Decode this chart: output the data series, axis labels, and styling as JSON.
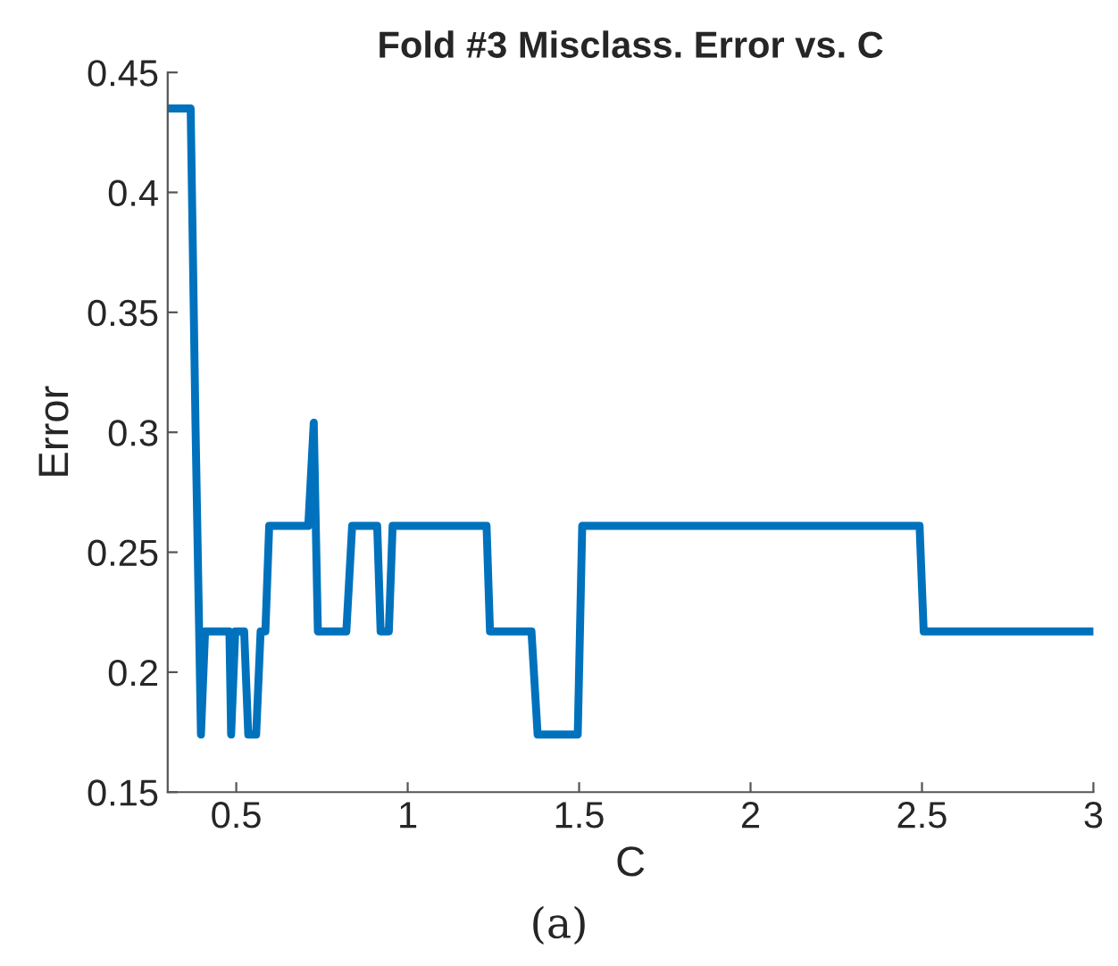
{
  "chart_data": {
    "type": "line",
    "title": "Fold #3 Misclass. Error vs. C",
    "xlabel": "C",
    "ylabel": "Error",
    "annotations": [
      "(a)"
    ],
    "x": [
      0.3,
      0.367,
      0.381,
      0.397,
      0.409,
      0.48,
      0.485,
      0.497,
      0.523,
      0.535,
      0.558,
      0.571,
      0.585,
      0.596,
      0.71,
      0.726,
      0.738,
      0.821,
      0.838,
      0.911,
      0.921,
      0.945,
      0.956,
      1.23,
      1.24,
      1.361,
      1.379,
      1.496,
      1.509,
      2.493,
      2.505,
      3
    ],
    "series": [
      {
        "color": "#0072bd",
        "values": [
          0.435,
          0.435,
          0.304,
          0.174,
          0.217,
          0.217,
          0.174,
          0.217,
          0.217,
          0.174,
          0.174,
          0.217,
          0.217,
          0.261,
          0.261,
          0.304,
          0.217,
          0.217,
          0.261,
          0.261,
          0.217,
          0.217,
          0.261,
          0.261,
          0.217,
          0.217,
          0.174,
          0.174,
          0.261,
          0.261,
          0.217,
          0.217
        ]
      }
    ],
    "xlim": [
      0.3,
      3
    ],
    "ylim": [
      0.15,
      0.45
    ],
    "xticks": [
      0.5,
      1,
      1.5,
      2,
      2.5,
      3
    ],
    "yticks": [
      0.15,
      0.2,
      0.25,
      0.3,
      0.35,
      0.4,
      0.45
    ],
    "grid": false,
    "marker": "none",
    "line_style": "solid"
  }
}
